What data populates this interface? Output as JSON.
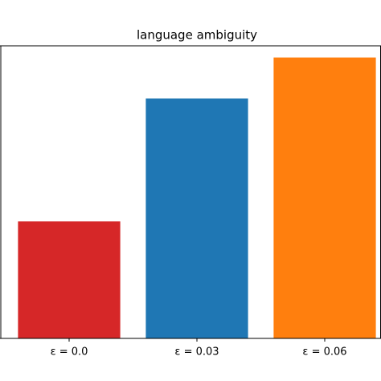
{
  "chart_data": {
    "type": "bar",
    "title": "language ambiguity",
    "categories": [
      "ε = 0.0",
      "ε = 0.03",
      "ε = 0.06"
    ],
    "values": [
      0.4,
      0.82,
      0.96
    ],
    "colors": [
      "#d62728",
      "#1f77b4",
      "#ff7f0e"
    ],
    "ylim": [
      0,
      1
    ]
  }
}
